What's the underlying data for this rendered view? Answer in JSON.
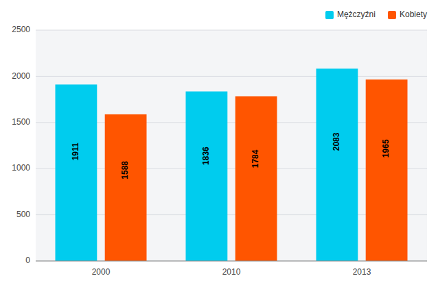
{
  "chart_data": {
    "type": "bar",
    "categories": [
      "2000",
      "2010",
      "2013"
    ],
    "series": [
      {
        "name": "Mężczyźni",
        "color": "#00CCEE",
        "values": [
          1911,
          1836,
          2083
        ]
      },
      {
        "name": "Kobiety",
        "color": "#FF5500",
        "values": [
          1588,
          1784,
          1965
        ]
      }
    ],
    "ylim": [
      0,
      2500
    ],
    "yticks": [
      0,
      500,
      1000,
      1500,
      2000,
      2500
    ],
    "grid": true,
    "legend": "upper right",
    "data_labels": true
  }
}
